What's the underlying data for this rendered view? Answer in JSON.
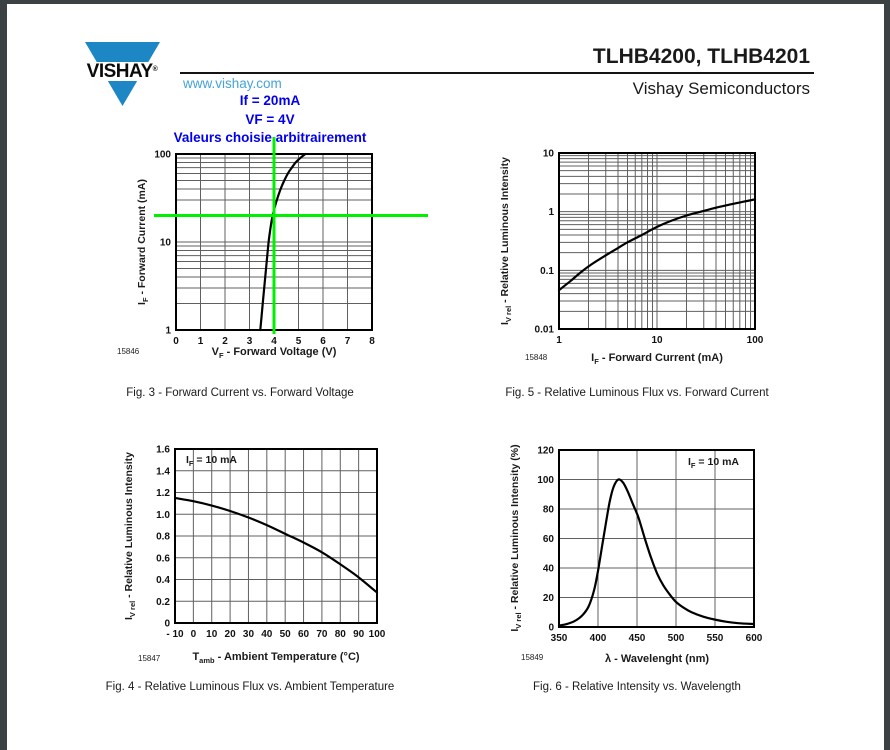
{
  "page": {
    "header": {
      "logo_text": "VISHAY",
      "logo_reg": "®",
      "website": "www.vishay.com",
      "title": "TLHB4200, TLHB4201",
      "subtitle": "Vishay Semiconductors"
    },
    "notes": {
      "line1": "If = 20mA",
      "line2": "VF = 4V",
      "line3": "Valeurs choisie arbitrairement"
    }
  },
  "colors": {
    "frame": "#3c4144",
    "page_bg": "#ffffff",
    "logo_blue": "#1d87c6",
    "link_blue": "#44a3d8",
    "note_blue": "#0000ee",
    "marker_green": "#00f000",
    "grid": "#606060",
    "ink": "#111111"
  },
  "chart_data": [
    {
      "type": "line",
      "title": "Fig. 3 - Forward Current vs. Forward Voltage",
      "part_number": "15846",
      "x_axis": {
        "label_pre": "V",
        "label_sub": "F",
        "label_post": " - Forward Voltage (V)",
        "scale": "linear",
        "min": 0,
        "max": 8,
        "ticks": [
          0,
          1,
          2,
          3,
          4,
          5,
          6,
          7,
          8
        ],
        "tick_labels": [
          "0",
          "1",
          "2",
          "3",
          "4",
          "5",
          "6",
          "7",
          "8"
        ]
      },
      "y_axis": {
        "label_pre": "I",
        "label_sub": "F",
        "label_post": " - Forward Current (mA)",
        "scale": "log",
        "min": 1,
        "max": 100,
        "ticks": [
          1,
          10,
          100
        ],
        "tick_labels": [
          "1",
          "10",
          "100"
        ]
      },
      "series": [
        {
          "points": [
            [
              3.44,
              1
            ],
            [
              3.49,
              1.4
            ],
            [
              3.54,
              2
            ],
            [
              3.6,
              3
            ],
            [
              3.66,
              4.5
            ],
            [
              3.71,
              6.3
            ],
            [
              3.78,
              10
            ],
            [
              3.85,
              14
            ],
            [
              3.92,
              18.5
            ],
            [
              3.98,
              22
            ],
            [
              4.1,
              29
            ],
            [
              4.27,
              40
            ],
            [
              4.42,
              50
            ],
            [
              4.58,
              61
            ],
            [
              4.73,
              70
            ],
            [
              4.88,
              80
            ],
            [
              5.07,
              90
            ],
            [
              5.28,
              100
            ]
          ]
        }
      ],
      "crosshair": {
        "x": 4,
        "y": 20
      }
    },
    {
      "type": "line",
      "title": "Fig. 5 - Relative Luminous Flux vs. Forward Current",
      "part_number": "15848",
      "x_axis": {
        "label_pre": "I",
        "label_sub": "F",
        "label_post": " - Forward Current (mA)",
        "scale": "log",
        "min": 1,
        "max": 100,
        "ticks": [
          1,
          10,
          100
        ],
        "tick_labels": [
          "1",
          "10",
          "100"
        ]
      },
      "y_axis": {
        "label_pre": "I",
        "label_sub": "V rel",
        "label_post": " - Relative Luminous Intensity",
        "scale": "log",
        "min": 0.01,
        "max": 10,
        "ticks": [
          0.01,
          0.1,
          1,
          10
        ],
        "tick_labels": [
          "0.01",
          "0.1",
          "1",
          "10"
        ]
      },
      "series": [
        {
          "points": [
            [
              1,
              0.046
            ],
            [
              1.3,
              0.065
            ],
            [
              1.7,
              0.095
            ],
            [
              2.2,
              0.13
            ],
            [
              3,
              0.18
            ],
            [
              4,
              0.24
            ],
            [
              5,
              0.3
            ],
            [
              7,
              0.4
            ],
            [
              10,
              0.55
            ],
            [
              14,
              0.7
            ],
            [
              20,
              0.86
            ],
            [
              28,
              1.0
            ],
            [
              40,
              1.17
            ],
            [
              55,
              1.32
            ],
            [
              75,
              1.47
            ],
            [
              100,
              1.62
            ]
          ]
        }
      ]
    },
    {
      "type": "line",
      "title": "Fig. 4 - Relative Luminous Flux vs. Ambient Temperature",
      "part_number": "15847",
      "annotation": {
        "pre": "I",
        "sub": "F",
        "post": " = 10 mA"
      },
      "x_axis": {
        "label_pre": "T",
        "label_sub": "amb",
        "label_post": " - Ambient Temperature (°C)",
        "scale": "linear",
        "min": -10,
        "max": 100,
        "ticks": [
          -10,
          0,
          10,
          20,
          30,
          40,
          50,
          60,
          70,
          80,
          90,
          100
        ],
        "tick_labels": [
          "- 10",
          "0",
          "10",
          "20",
          "30",
          "40",
          "50",
          "60",
          "70",
          "80",
          "90",
          "100"
        ]
      },
      "y_axis": {
        "label_pre": "I",
        "label_sub": "V rel",
        "label_post": " - Relative Luminous Intensity",
        "scale": "linear",
        "min": 0,
        "max": 1.6,
        "ticks": [
          0,
          0.2,
          0.4,
          0.6,
          0.8,
          1.0,
          1.2,
          1.4,
          1.6
        ],
        "tick_labels": [
          "0",
          "0.2",
          "0.4",
          "0.6",
          "0.8",
          "1.0",
          "1.2",
          "1.4",
          "1.6"
        ]
      },
      "series": [
        {
          "points": [
            [
              -10,
              1.15
            ],
            [
              0,
              1.12
            ],
            [
              10,
              1.08
            ],
            [
              20,
              1.03
            ],
            [
              30,
              0.97
            ],
            [
              40,
              0.9
            ],
            [
              50,
              0.82
            ],
            [
              60,
              0.74
            ],
            [
              70,
              0.65
            ],
            [
              80,
              0.54
            ],
            [
              90,
              0.42
            ],
            [
              100,
              0.28
            ]
          ]
        }
      ]
    },
    {
      "type": "line",
      "title": "Fig. 6 - Relative Intensity vs. Wavelength",
      "part_number": "15849",
      "annotation": {
        "pre": "I",
        "sub": "F",
        "post": " = 10 mA"
      },
      "x_axis": {
        "label_pre": "λ",
        "label_sub": "",
        "label_post": " - Wavelenght (nm)",
        "scale": "linear",
        "min": 350,
        "max": 600,
        "ticks": [
          350,
          400,
          450,
          500,
          550,
          600
        ],
        "tick_labels": [
          "350",
          "400",
          "450",
          "500",
          "550",
          "600"
        ]
      },
      "y_axis": {
        "label_pre": "I",
        "label_sub": "V rel",
        "label_post": " - Relative Luminous Intensity (%)",
        "scale": "linear",
        "min": 0,
        "max": 120,
        "ticks": [
          0,
          20,
          40,
          60,
          80,
          100,
          120
        ],
        "tick_labels": [
          "0",
          "20",
          "40",
          "60",
          "80",
          "100",
          "120"
        ]
      },
      "series": [
        {
          "points": [
            [
              350,
              1
            ],
            [
              360,
              2
            ],
            [
              370,
              4
            ],
            [
              380,
              8
            ],
            [
              388,
              14
            ],
            [
              395,
              25
            ],
            [
              400,
              38
            ],
            [
              405,
              54
            ],
            [
              410,
              70
            ],
            [
              415,
              85
            ],
            [
              420,
              95
            ],
            [
              426,
              100
            ],
            [
              432,
              98
            ],
            [
              438,
              92
            ],
            [
              445,
              83
            ],
            [
              452,
              74
            ],
            [
              460,
              60
            ],
            [
              468,
              47
            ],
            [
              476,
              36
            ],
            [
              484,
              28
            ],
            [
              492,
              22
            ],
            [
              500,
              17
            ],
            [
              510,
              13
            ],
            [
              520,
              10
            ],
            [
              535,
              7
            ],
            [
              550,
              5
            ],
            [
              565,
              3.5
            ],
            [
              580,
              2.6
            ],
            [
              600,
              2
            ]
          ]
        }
      ]
    }
  ]
}
